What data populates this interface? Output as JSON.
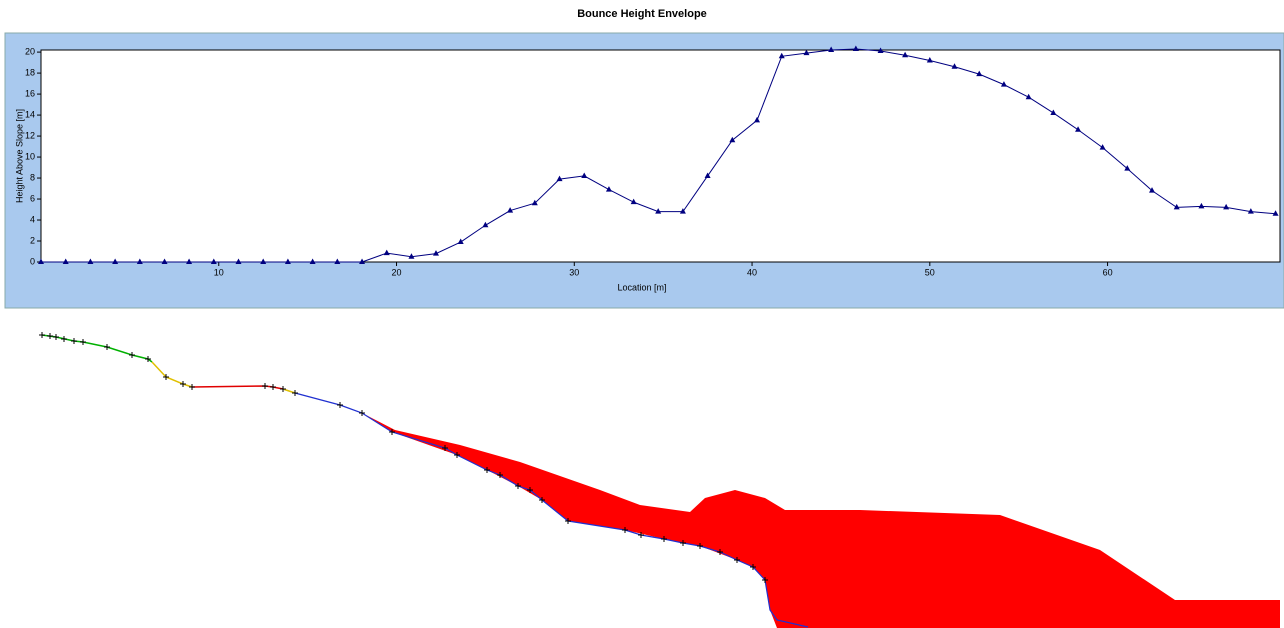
{
  "chart_data": {
    "type": "line",
    "title": "Bounce Height Envelope",
    "x_label": "Location [m]",
    "y_label": "Height Above Slope [m]",
    "x": [
      0,
      1.39,
      2.78,
      4.17,
      5.56,
      6.95,
      8.33,
      9.72,
      11.11,
      12.5,
      13.89,
      15.28,
      16.67,
      18.06,
      19.45,
      20.84,
      22.22,
      23.61,
      25.0,
      26.39,
      27.78,
      29.17,
      30.56,
      31.95,
      33.34,
      34.72,
      36.11,
      37.5,
      38.89,
      40.28,
      41.67,
      43.06,
      44.45,
      45.84,
      47.23,
      48.61,
      50.0,
      51.39,
      52.78,
      54.17,
      55.56,
      56.95,
      58.34,
      59.72,
      61.11,
      62.5,
      63.89,
      65.28,
      66.67,
      68.06,
      69.45
    ],
    "series": [
      {
        "color": "#000080",
        "values": [
          0,
          0,
          0,
          0,
          0,
          0,
          0,
          0,
          0,
          0,
          0,
          0,
          0,
          0,
          0.85,
          0.5,
          0.8,
          1.9,
          3.5,
          4.9,
          5.6,
          7.9,
          8.2,
          6.9,
          5.7,
          4.8,
          4.8,
          8.2,
          11.6,
          13.5,
          19.6,
          19.9,
          20.2,
          20.3,
          20.1,
          19.7,
          19.2,
          18.6,
          17.9,
          16.9,
          15.7,
          14.2,
          12.6,
          10.9,
          8.9,
          6.8,
          5.2,
          5.3,
          5.2,
          4.8,
          4.6
        ]
      }
    ],
    "xlim": [
      0,
      69.7
    ],
    "ylim": [
      0,
      20.2
    ],
    "xticks": [
      10,
      20,
      30,
      40,
      50,
      60
    ],
    "yticks": [
      0,
      2,
      4,
      6,
      8,
      10,
      12,
      14,
      16,
      18,
      20
    ],
    "marker": "triangle"
  }
}
